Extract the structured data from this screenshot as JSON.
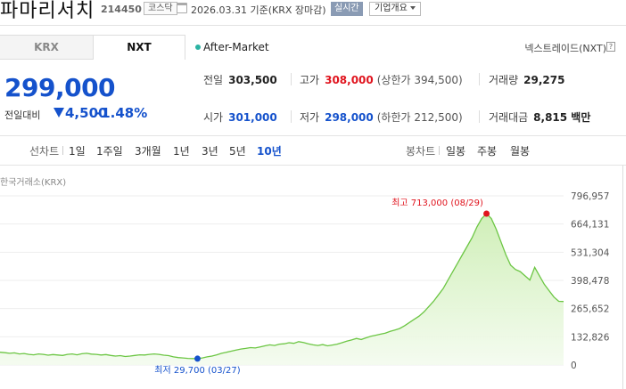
{
  "header": {
    "stock_name": "파마리서치",
    "code": "214450",
    "market": "코스닥",
    "date_text": "2026.03.31 기준(KRX 장마감)",
    "realtime_label": "실시간",
    "overview_label": "기업개요",
    "icons": [
      "calendar-icon",
      "chevron-down-icon"
    ]
  },
  "tabs": [
    {
      "label": "KRX",
      "selected": false
    },
    {
      "label": "NXT",
      "selected": true
    }
  ],
  "session": {
    "label": "After-Market",
    "provider_label": "넥스트레이드(NXT)",
    "help_icon": "?"
  },
  "price": {
    "current": "299,000",
    "change_label": "전일대비",
    "change_value": "4,500",
    "change_pct": "-1.48%",
    "direction": "down"
  },
  "stats": {
    "prev_close": {
      "label": "전일",
      "value": "303,500"
    },
    "high": {
      "label": "고가",
      "value": "308,000",
      "note": "(상한가 394,500)"
    },
    "volume": {
      "label": "거래량",
      "value": "29,275"
    },
    "open": {
      "label": "시가",
      "value": "301,000"
    },
    "low": {
      "label": "저가",
      "value": "298,000",
      "note": "(하한가 212,500)"
    },
    "amount": {
      "label": "거래대금",
      "value": "8,815 백만"
    }
  },
  "period_tabs": {
    "line_label": "선차트",
    "line_items": [
      "1일",
      "1주일",
      "3개월",
      "1년",
      "3년",
      "5년",
      "10년"
    ],
    "selected": "10년",
    "candle_label": "봉차트",
    "candle_items": [
      "일봉",
      "주봉",
      "월봉"
    ]
  },
  "colors": {
    "accent_blue": "#1552cc",
    "up_red": "#e0141e",
    "line_green": "#6cc644",
    "area_fill": "#e6f6d8"
  },
  "chart_data": {
    "type": "area",
    "source_label": "한국거래소(KRX)",
    "ylim": [
      0,
      796957
    ],
    "y_ticks": [
      "796,957",
      "664,131",
      "531,304",
      "398,478",
      "265,652",
      "132,826",
      "0"
    ],
    "max_annotation": "최고 713,000 (08/29)",
    "min_annotation": "최저 29,700 (03/27)",
    "series": [
      {
        "values": [
          60000,
          58000,
          55000,
          57000,
          52000,
          54000,
          50000,
          48000,
          52000,
          50000,
          46000,
          49000,
          47000,
          45000,
          50000,
          52000,
          48000,
          53000,
          55000,
          51000,
          50000,
          47000,
          49000,
          45000,
          42000,
          44000,
          40000,
          42000,
          45000,
          48000,
          47000,
          50000,
          52000,
          50000,
          46000,
          44000,
          38000,
          35000,
          33000,
          31000,
          30000,
          29700,
          33000,
          38000,
          42000,
          48000,
          55000,
          60000,
          65000,
          70000,
          75000,
          78000,
          82000,
          80000,
          85000,
          90000,
          95000,
          92000,
          98000,
          100000,
          105000,
          102000,
          110000,
          106000,
          100000,
          95000,
          92000,
          96000,
          90000,
          94000,
          98000,
          105000,
          112000,
          118000,
          125000,
          120000,
          128000,
          135000,
          140000,
          145000,
          150000,
          158000,
          165000,
          172000,
          185000,
          200000,
          215000,
          230000,
          250000,
          275000,
          300000,
          330000,
          360000,
          400000,
          440000,
          480000,
          520000,
          560000,
          600000,
          650000,
          690000,
          713000,
          690000,
          640000,
          580000,
          520000,
          470000,
          450000,
          440000,
          420000,
          400000,
          460000,
          420000,
          380000,
          350000,
          320000,
          300000,
          299000
        ]
      }
    ]
  }
}
